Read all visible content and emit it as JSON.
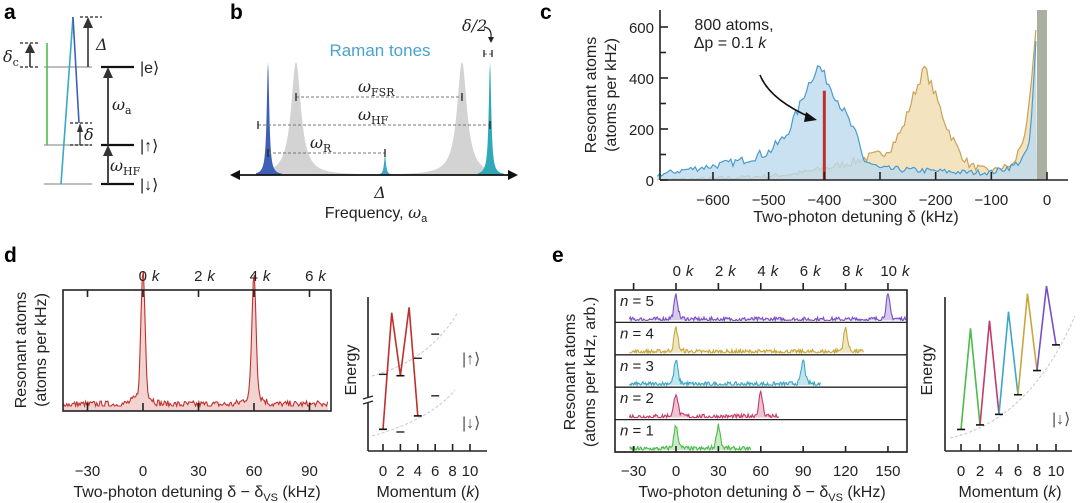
{
  "panels": {
    "a": {
      "label": "a",
      "delta_c": "δ",
      "delta_c_sub": "c",
      "Delta": "Δ",
      "e": "|e⟩",
      "omega_a": "ω",
      "omega_a_sub": "a",
      "delta": "δ",
      "up": "|↑⟩",
      "omega_hf": "ω",
      "omega_hf_sub": "HF",
      "down": "|↓⟩"
    },
    "b": {
      "label": "b",
      "raman": "Raman tones",
      "half_delta": "δ/2",
      "omega_fsr": "ω",
      "omega_fsr_sub": "FSR",
      "omega_hf": "ω",
      "omega_hf_sub": "HF",
      "omega_r": "ω",
      "omega_r_sub": "R",
      "Delta": "Δ",
      "xlabel": "Frequency, ",
      "xlabel_sym": "ω",
      "xlabel_sub": "a"
    },
    "c": {
      "label": "c"
    },
    "d": {
      "label": "d"
    },
    "e": {
      "label": "e"
    }
  },
  "colors": {
    "blue": "#4a9bd0",
    "blue_fill": "#bcdaee",
    "orange": "#c9a258",
    "orange_fill": "#efd9a9",
    "red": "#c0302b",
    "red_fill": "#f1d3d2",
    "green": "#4cbc4a",
    "pink": "#c43a6c",
    "cyan": "#39a9c6",
    "yellow": "#c8a83c",
    "purple": "#7a4fc4",
    "gray_peak": "#d3d3d3"
  },
  "chart_data": [
    {
      "id": "c",
      "type": "area",
      "title": "",
      "xlabel": "Two-photon detuning δ (kHz)",
      "ylabel": [
        "Resonant atoms",
        "(atoms per kHz)"
      ],
      "xlim": [
        -700,
        30
      ],
      "ylim": [
        0,
        650
      ],
      "xticks": [
        "−600",
        "−500",
        "−400",
        "−300",
        "−200",
        "−100",
        "0"
      ],
      "xtick_values": [
        -600,
        -500,
        -400,
        -300,
        -200,
        -100,
        0
      ],
      "yticks": [
        "0",
        "200",
        "400",
        "600"
      ],
      "ytick_values": [
        0,
        200,
        400,
        600
      ],
      "annotation": {
        "line1": "800 atoms,",
        "line2": "Δp = 0.1 ",
        "k": "k"
      },
      "series": [
        {
          "name": "blue",
          "x": [
            -700,
            -650,
            -600,
            -550,
            -500,
            -470,
            -450,
            -430,
            -410,
            -395,
            -380,
            -360,
            -340,
            -330,
            -300,
            -250,
            -200,
            -150,
            -100,
            -60,
            -40,
            -30,
            -22,
            -18
          ],
          "y": [
            20,
            40,
            55,
            75,
            110,
            170,
            260,
            370,
            450,
            390,
            330,
            250,
            160,
            80,
            45,
            40,
            35,
            30,
            30,
            55,
            90,
            160,
            450,
            620
          ]
        },
        {
          "name": "orange",
          "x": [
            -700,
            -600,
            -500,
            -450,
            -400,
            -350,
            -320,
            -300,
            -280,
            -260,
            -240,
            -220,
            -200,
            -180,
            -160,
            -140,
            -120,
            -100,
            -60,
            -45,
            -35,
            -25,
            -18
          ],
          "y": [
            0,
            5,
            15,
            25,
            45,
            70,
            90,
            100,
            130,
            200,
            330,
            440,
            330,
            210,
            120,
            60,
            45,
            35,
            60,
            150,
            220,
            450,
            620
          ]
        },
        {
          "name": "red",
          "x": [
            -400
          ],
          "y": [
            350
          ]
        }
      ]
    },
    {
      "id": "d",
      "type": "line",
      "xlabel": "Two-photon detuning δ − δ",
      "xlabel_sub": "VS",
      "xlabel_unit": " (kHz)",
      "ylabel": [
        "Resonant atoms",
        "(atoms per kHz)"
      ],
      "xlim": [
        -43,
        100
      ],
      "xticks": [
        "−30",
        "0",
        "30",
        "60",
        "90"
      ],
      "xtick_values": [
        -30,
        0,
        30,
        60,
        90
      ],
      "top_ticks": [
        "0",
        "2",
        "4",
        "6"
      ],
      "top_tick_unit": "k",
      "top_tick_values": [
        0,
        30,
        60,
        90
      ],
      "peaks": [
        {
          "x": 0,
          "height": 1.0
        },
        {
          "x": 60,
          "height": 0.98
        }
      ],
      "baseline": 0.05
    },
    {
      "id": "d-inset",
      "type": "line",
      "xlabel": "Momentum (",
      "xlabel_k": "k",
      "xlabel_end": ")",
      "ylabel": "Energy",
      "xticks": [
        "0",
        "2",
        "4",
        "6",
        "8",
        "10"
      ],
      "path_k": [
        0,
        1,
        2,
        3,
        4
      ],
      "path_energy": [
        0.05,
        0.92,
        0.45,
        0.96,
        0.15
      ],
      "up_label": "|↑⟩",
      "down_label": "|↓⟩"
    },
    {
      "id": "e",
      "type": "line",
      "xlabel": "Two-photon detuning δ − δ",
      "xlabel_sub": "VS",
      "xlabel_unit": " (kHz)",
      "ylabel": [
        "Resonant atoms",
        "(atoms per kHz, arb.)"
      ],
      "xlim": [
        -43,
        163
      ],
      "xticks": [
        "−30",
        "0",
        "30",
        "60",
        "90",
        "120",
        "150"
      ],
      "xtick_values": [
        -30,
        0,
        30,
        60,
        90,
        120,
        150
      ],
      "top_ticks": [
        "0",
        "2",
        "4",
        "6",
        "8",
        "10"
      ],
      "top_tick_unit": "k",
      "top_tick_values": [
        0,
        30,
        60,
        90,
        120,
        150
      ],
      "rows": [
        {
          "label": "n = 5",
          "n": "n",
          "eq": " = 5",
          "color": "purple",
          "peaks": [
            0,
            150
          ],
          "xmax": 163
        },
        {
          "label": "n = 4",
          "n": "n",
          "eq": " = 4",
          "color": "yellow",
          "peaks": [
            0,
            120
          ],
          "xmax": 133
        },
        {
          "label": "n = 3",
          "n": "n",
          "eq": " = 3",
          "color": "cyan",
          "peaks": [
            0,
            90
          ],
          "xmax": 103
        },
        {
          "label": "n = 2",
          "n": "n",
          "eq": " = 2",
          "color": "pink",
          "peaks": [
            0,
            60
          ],
          "xmax": 73
        },
        {
          "label": "n = 1",
          "n": "n",
          "eq": " = 1",
          "color": "green",
          "peaks": [
            0,
            30
          ],
          "xmax": 53
        }
      ]
    },
    {
      "id": "e-inset",
      "type": "line",
      "xlabel": "Momentum (",
      "xlabel_k": "k",
      "xlabel_end": ")",
      "ylabel": "Energy",
      "xticks": [
        "0",
        "2",
        "4",
        "6",
        "8",
        "10"
      ],
      "segments": [
        {
          "color": "green",
          "k": [
            0,
            1,
            2
          ],
          "energy": [
            0.05,
            0.72,
            0.08
          ]
        },
        {
          "color": "pink",
          "k": [
            2,
            3,
            4
          ],
          "energy": [
            0.08,
            0.77,
            0.15
          ]
        },
        {
          "color": "cyan",
          "k": [
            4,
            5,
            6
          ],
          "energy": [
            0.15,
            0.83,
            0.28
          ]
        },
        {
          "color": "yellow",
          "k": [
            6,
            7,
            8
          ],
          "energy": [
            0.28,
            0.95,
            0.44
          ]
        },
        {
          "color": "purple",
          "k": [
            8,
            9,
            10
          ],
          "energy": [
            0.44,
            1.0,
            0.61
          ]
        }
      ],
      "down_label": "|↓⟩"
    }
  ]
}
